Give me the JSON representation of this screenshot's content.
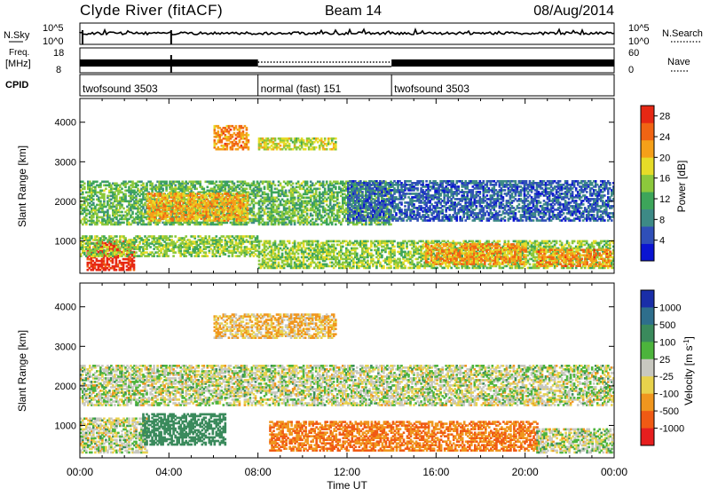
{
  "header": {
    "station": "Clyde River (fitACF)",
    "beam": "Beam 14",
    "date": "08/Aug/2014"
  },
  "noise_panel": {
    "left_label": "N.Sky",
    "right_label": "N.Search",
    "left_ticks": [
      "10^5",
      "10^0"
    ],
    "right_ticks": [
      "10^5",
      "10^0"
    ]
  },
  "freq_panel": {
    "left_label_1": "Freq.",
    "left_label_2": "[MHz]",
    "right_label": "Nave",
    "left_ticks": [
      "18",
      "8"
    ],
    "right_ticks": [
      "60",
      "0"
    ]
  },
  "cpid_panel": {
    "label": "CPID",
    "segments": [
      {
        "name": "twofsound 3503",
        "start_hour": 0,
        "end_hour": 8
      },
      {
        "name": "normal (fast) 151",
        "start_hour": 8,
        "end_hour": 14
      },
      {
        "name": "twofsound 3503",
        "start_hour": 14,
        "end_hour": 24
      }
    ]
  },
  "chart_data": [
    {
      "type": "heatmap",
      "title": "",
      "xlabel": "Time UT",
      "ylabel": "Slant Range [km]",
      "x_range_hours": [
        0,
        24
      ],
      "x_ticks": [
        "00:00",
        "04:00",
        "08:00",
        "12:00",
        "16:00",
        "20:00",
        "00:00"
      ],
      "y_range_km": [
        180,
        4600
      ],
      "y_ticks": [
        1000,
        2000,
        3000,
        4000
      ],
      "colorbar": {
        "label": "Power [dB]",
        "ticks": [
          4,
          8,
          12,
          16,
          20,
          24,
          28
        ],
        "range": [
          0,
          30
        ],
        "colors": [
          "#0a14d2",
          "#2f4fb8",
          "#3d8a86",
          "#3da55a",
          "#8cc83c",
          "#e6dc28",
          "#f5a019",
          "#f06414",
          "#e62814"
        ]
      },
      "echo_regions": [
        {
          "t0": 0.3,
          "t1": 2.4,
          "r0": 250,
          "r1": 1000,
          "value": 29
        },
        {
          "t0": 0.0,
          "t1": 8.0,
          "r0": 600,
          "r1": 1100,
          "value": 15
        },
        {
          "t0": 0.0,
          "t1": 14.0,
          "r0": 1400,
          "r1": 2500,
          "value": 13
        },
        {
          "t0": 3.0,
          "t1": 7.5,
          "r0": 1500,
          "r1": 2200,
          "value": 21
        },
        {
          "t0": 6.0,
          "t1": 7.6,
          "r0": 3300,
          "r1": 3900,
          "value": 23
        },
        {
          "t0": 8.0,
          "t1": 11.5,
          "r0": 3300,
          "r1": 3600,
          "value": 17
        },
        {
          "t0": 8.0,
          "t1": 24.0,
          "r0": 300,
          "r1": 1000,
          "value": 15
        },
        {
          "t0": 15.5,
          "t1": 20.0,
          "r0": 400,
          "r1": 900,
          "value": 22
        },
        {
          "t0": 20.5,
          "t1": 23.8,
          "r0": 350,
          "r1": 800,
          "value": 23
        },
        {
          "t0": 12.0,
          "t1": 24.0,
          "r0": 1500,
          "r1": 2500,
          "value": 6
        }
      ]
    },
    {
      "type": "heatmap",
      "title": "",
      "xlabel": "Time UT",
      "ylabel": "Slant Range [km]",
      "x_range_hours": [
        0,
        24
      ],
      "x_ticks": [
        "00:00",
        "04:00",
        "08:00",
        "12:00",
        "16:00",
        "20:00",
        "00:00"
      ],
      "y_range_km": [
        180,
        4600
      ],
      "y_ticks": [
        1000,
        2000,
        3000,
        4000
      ],
      "colorbar": {
        "label": "Velocity [m s^-1]",
        "ticks": [
          "1000",
          "500",
          "100",
          "25",
          "-25",
          "-100",
          "-500",
          "-1000"
        ],
        "colors": [
          "#1a2ea8",
          "#2e6e8c",
          "#3a8a5c",
          "#4cb43c",
          "#c8c8c0",
          "#e8d24c",
          "#f0961e",
          "#f05a14",
          "#e61e1e"
        ]
      },
      "echo_regions": [
        {
          "t0": 0.0,
          "t1": 24.0,
          "r0": 1500,
          "r1": 2500,
          "value": 0
        },
        {
          "t0": 0.0,
          "t1": 3.0,
          "r0": 300,
          "r1": 1200,
          "value": 0
        },
        {
          "t0": 2.8,
          "t1": 6.5,
          "r0": 500,
          "r1": 1300,
          "value": 150
        },
        {
          "t0": 8.5,
          "t1": 20.5,
          "r0": 350,
          "r1": 1100,
          "value": -300
        },
        {
          "t0": 6.0,
          "t1": 11.5,
          "r0": 3200,
          "r1": 3800,
          "value": -60
        },
        {
          "t0": 20.5,
          "t1": 24.0,
          "r0": 300,
          "r1": 900,
          "value": 0
        }
      ]
    }
  ],
  "time_axis": {
    "label": "Time UT",
    "ticks": [
      "00:00",
      "04:00",
      "08:00",
      "12:00",
      "16:00",
      "20:00",
      "00:00"
    ]
  }
}
